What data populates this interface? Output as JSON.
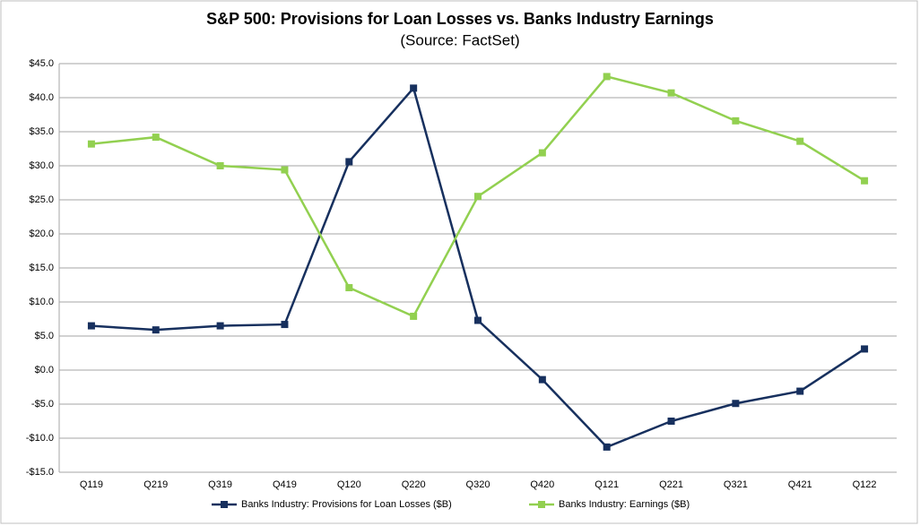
{
  "chart_data": {
    "type": "line",
    "title": "S&P 500: Provisions for Loan Losses vs. Banks Industry Earnings",
    "subtitle": "(Source: FactSet)",
    "categories": [
      "Q119",
      "Q219",
      "Q319",
      "Q419",
      "Q120",
      "Q220",
      "Q320",
      "Q420",
      "Q121",
      "Q221",
      "Q321",
      "Q421",
      "Q122"
    ],
    "series": [
      {
        "name": "Banks Industry: Provisions for Loan Losses ($B)",
        "color": "#17305e",
        "values": [
          6.5,
          5.9,
          6.5,
          6.7,
          30.6,
          41.4,
          7.3,
          -1.4,
          -11.3,
          -7.5,
          -4.9,
          -3.1,
          3.1
        ]
      },
      {
        "name": "Banks Industry: Earnings ($B)",
        "color": "#92d050",
        "values": [
          33.2,
          34.2,
          30.0,
          29.4,
          12.1,
          7.9,
          25.5,
          31.9,
          43.1,
          40.7,
          36.6,
          33.6,
          27.8
        ]
      }
    ],
    "ylim": [
      -15,
      45
    ],
    "yticks": [
      {
        "value": -15,
        "label": "-$15.0"
      },
      {
        "value": -10,
        "label": "-$10.0"
      },
      {
        "value": -5,
        "label": "-$5.0"
      },
      {
        "value": 0,
        "label": "$0.0"
      },
      {
        "value": 5,
        "label": "$5.0"
      },
      {
        "value": 10,
        "label": "$10.0"
      },
      {
        "value": 15,
        "label": "$15.0"
      },
      {
        "value": 20,
        "label": "$20.0"
      },
      {
        "value": 25,
        "label": "$25.0"
      },
      {
        "value": 30,
        "label": "$30.0"
      },
      {
        "value": 35,
        "label": "$35.0"
      },
      {
        "value": 40,
        "label": "$40.0"
      },
      {
        "value": 45,
        "label": "$45.0"
      }
    ],
    "grid": true,
    "legend": "bottom"
  }
}
